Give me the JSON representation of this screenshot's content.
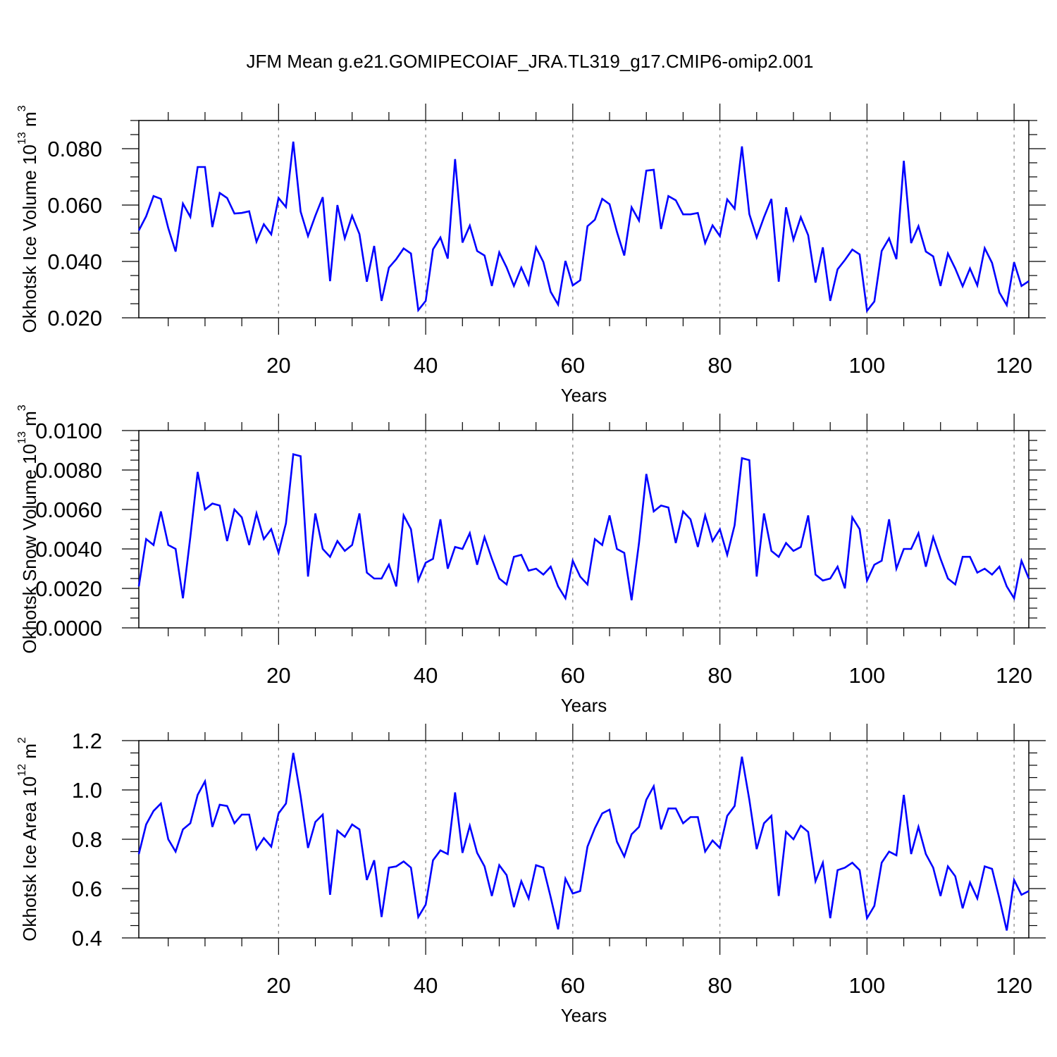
{
  "figure": {
    "title": "JFM Mean g.e21.GOMIPECOIAF_JRA.TL319_g17.CMIP6-omip2.001",
    "line_color": "#0000ff",
    "grid_color": "#808080"
  },
  "chart_data": [
    {
      "type": "line",
      "xlabel": "Years",
      "ylabel": "Okhotsk Ice Volume",
      "ylabel_unit": "10",
      "ylabel_exp": "13",
      "ylabel_unit2": " m",
      "ylabel_exp2": "3",
      "xlim": [
        1,
        122
      ],
      "ylim": [
        0.02,
        0.09
      ],
      "xticks": [
        20,
        40,
        60,
        80,
        100,
        120
      ],
      "xtick_labels": [
        "20",
        "40",
        "60",
        "80",
        "100",
        "120"
      ],
      "yticks": [
        0.02,
        0.04,
        0.06,
        0.08
      ],
      "ytick_labels": [
        "0.020",
        "0.040",
        "0.060",
        "0.080"
      ],
      "ygrid": false,
      "xgrid_dashed": true,
      "series": [
        {
          "x_start": 1,
          "values": [
            0.051,
            0.056,
            0.0632,
            0.0622,
            0.0518,
            0.0435,
            0.0605,
            0.0558,
            0.0735,
            0.0735,
            0.0522,
            0.0643,
            0.0625,
            0.057,
            0.0572,
            0.0578,
            0.047,
            0.0532,
            0.0496,
            0.0625,
            0.0593,
            0.0825,
            0.0577,
            0.049,
            0.0562,
            0.0628,
            0.033,
            0.06,
            0.0482,
            0.0562,
            0.0497,
            0.0328,
            0.0455,
            0.026,
            0.0378,
            0.0408,
            0.0446,
            0.0428,
            0.0227,
            0.026,
            0.0443,
            0.0485,
            0.041,
            0.0763,
            0.0467,
            0.0527,
            0.0437,
            0.0421,
            0.0313,
            0.0432,
            0.0379,
            0.0313,
            0.0378,
            0.0318,
            0.045,
            0.0398,
            0.0292,
            0.0247,
            0.0402,
            0.0315,
            0.0333,
            0.0525,
            0.0548,
            0.0622,
            0.0603,
            0.0505,
            0.0421,
            0.0592,
            0.0545,
            0.0722,
            0.0725,
            0.0515,
            0.0632,
            0.0617,
            0.0567,
            0.0567,
            0.0572,
            0.0465,
            0.0528,
            0.049,
            0.062,
            0.0587,
            0.0808,
            0.0568,
            0.0485,
            0.0557,
            0.0622,
            0.0328,
            0.0592,
            0.0477,
            0.0557,
            0.0493,
            0.0325,
            0.045,
            0.026,
            0.0372,
            0.0405,
            0.0442,
            0.0425,
            0.0225,
            0.0258,
            0.0437,
            0.0482,
            0.0408,
            0.0757,
            0.0465,
            0.0525,
            0.0435,
            0.0418,
            0.0313,
            0.0428,
            0.0375,
            0.0312,
            0.0375,
            0.0315,
            0.0447,
            0.0395,
            0.029,
            0.0245,
            0.0397,
            0.0313,
            0.033
          ]
        }
      ]
    },
    {
      "type": "line",
      "xlabel": "Years",
      "ylabel": "Okhotsk Snow Volume",
      "ylabel_unit": "10",
      "ylabel_exp": "13",
      "ylabel_unit2": " m",
      "ylabel_exp2": "3",
      "xlim": [
        1,
        122
      ],
      "ylim": [
        0.0,
        0.01
      ],
      "xticks": [
        20,
        40,
        60,
        80,
        100,
        120
      ],
      "xtick_labels": [
        "20",
        "40",
        "60",
        "80",
        "100",
        "120"
      ],
      "yticks": [
        0.0,
        0.002,
        0.004,
        0.006,
        0.008,
        0.01
      ],
      "ytick_labels": [
        "0.0000",
        "0.0020",
        "0.0040",
        "0.0060",
        "0.0080",
        "0.0100"
      ],
      "ygrid": false,
      "xgrid_dashed": true,
      "series": [
        {
          "x_start": 1,
          "values": [
            0.0021,
            0.0045,
            0.0042,
            0.0059,
            0.0042,
            0.004,
            0.0015,
            0.0046,
            0.0079,
            0.006,
            0.0063,
            0.0062,
            0.0044,
            0.006,
            0.0056,
            0.0042,
            0.0058,
            0.0045,
            0.005,
            0.0038,
            0.0053,
            0.0088,
            0.0087,
            0.0026,
            0.0058,
            0.004,
            0.0036,
            0.0044,
            0.0039,
            0.0042,
            0.0058,
            0.0028,
            0.0025,
            0.0025,
            0.0032,
            0.0021,
            0.0057,
            0.005,
            0.0024,
            0.0033,
            0.0035,
            0.0055,
            0.003,
            0.0041,
            0.004,
            0.0048,
            0.0032,
            0.0046,
            0.0035,
            0.0025,
            0.0022,
            0.0036,
            0.0037,
            0.0029,
            0.003,
            0.0027,
            0.0031,
            0.0021,
            0.0015,
            0.0034,
            0.0026,
            0.0022,
            0.0045,
            0.0042,
            0.0057,
            0.004,
            0.0038,
            0.0014,
            0.0043,
            0.0078,
            0.0059,
            0.0062,
            0.0061,
            0.0043,
            0.0059,
            0.0055,
            0.0041,
            0.0057,
            0.0044,
            0.005,
            0.0037,
            0.0052,
            0.0086,
            0.0085,
            0.0026,
            0.0058,
            0.0039,
            0.0036,
            0.0043,
            0.0039,
            0.0041,
            0.0057,
            0.0027,
            0.0024,
            0.0025,
            0.0031,
            0.002,
            0.0056,
            0.005,
            0.0024,
            0.0032,
            0.0034,
            0.0055,
            0.003,
            0.004,
            0.004,
            0.0048,
            0.0031,
            0.0046,
            0.0035,
            0.0025,
            0.0022,
            0.0036,
            0.0036,
            0.0028,
            0.003,
            0.0027,
            0.0031,
            0.0021,
            0.0015,
            0.0034,
            0.0025
          ]
        }
      ]
    },
    {
      "type": "line",
      "xlabel": "Years",
      "ylabel": "Okhotsk Ice Area",
      "ylabel_unit": "10",
      "ylabel_exp": "12",
      "ylabel_unit2": " m",
      "ylabel_exp2": "2",
      "xlim": [
        1,
        122
      ],
      "ylim": [
        0.4,
        1.2
      ],
      "xticks": [
        20,
        40,
        60,
        80,
        100,
        120
      ],
      "xtick_labels": [
        "20",
        "40",
        "60",
        "80",
        "100",
        "120"
      ],
      "yticks": [
        0.4,
        0.6,
        0.8,
        1.0,
        1.2
      ],
      "ytick_labels": [
        "0.4",
        "0.6",
        "0.8",
        "1.0",
        "1.2"
      ],
      "ygrid": false,
      "xgrid_dashed": true,
      "series": [
        {
          "x_start": 1,
          "values": [
            0.74,
            0.86,
            0.915,
            0.945,
            0.8,
            0.75,
            0.84,
            0.865,
            0.98,
            1.035,
            0.85,
            0.94,
            0.935,
            0.865,
            0.9,
            0.9,
            0.76,
            0.805,
            0.77,
            0.905,
            0.945,
            1.15,
            0.975,
            0.765,
            0.87,
            0.9,
            0.575,
            0.835,
            0.81,
            0.86,
            0.84,
            0.635,
            0.715,
            0.485,
            0.685,
            0.69,
            0.71,
            0.685,
            0.485,
            0.535,
            0.715,
            0.755,
            0.74,
            0.99,
            0.745,
            0.855,
            0.745,
            0.69,
            0.57,
            0.695,
            0.655,
            0.525,
            0.63,
            0.56,
            0.695,
            0.685,
            0.565,
            0.435,
            0.64,
            0.58,
            0.59,
            0.77,
            0.845,
            0.905,
            0.92,
            0.79,
            0.73,
            0.82,
            0.85,
            0.96,
            1.015,
            0.84,
            0.925,
            0.925,
            0.865,
            0.89,
            0.89,
            0.75,
            0.795,
            0.765,
            0.895,
            0.935,
            1.135,
            0.96,
            0.76,
            0.865,
            0.895,
            0.57,
            0.83,
            0.8,
            0.855,
            0.83,
            0.63,
            0.705,
            0.48,
            0.675,
            0.685,
            0.705,
            0.675,
            0.48,
            0.53,
            0.705,
            0.75,
            0.735,
            0.98,
            0.74,
            0.85,
            0.74,
            0.685,
            0.57,
            0.69,
            0.65,
            0.52,
            0.625,
            0.56,
            0.69,
            0.68,
            0.56,
            0.43,
            0.635,
            0.575,
            0.59
          ]
        }
      ]
    }
  ]
}
